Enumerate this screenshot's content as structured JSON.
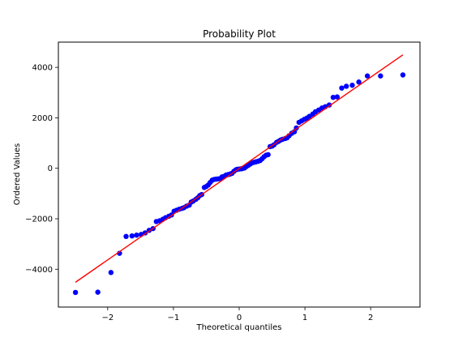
{
  "chart_data": {
    "type": "scatter",
    "title": "Probability Plot",
    "xlabel": "Theoretical quantiles",
    "ylabel": "Ordered Values",
    "xlim": [
      -2.75,
      2.75
    ],
    "ylim": [
      -5500,
      5000
    ],
    "xticks": [
      -2,
      -1,
      0,
      1,
      2
    ],
    "xtick_labels": [
      "−2",
      "−1",
      "0",
      "1",
      "2"
    ],
    "yticks": [
      -4000,
      -2000,
      0,
      2000,
      4000
    ],
    "ytick_labels": [
      "−4000",
      "−2000",
      "0",
      "2000",
      "4000"
    ],
    "grid": false,
    "marker_color": "#0000ff",
    "line_color": "#ff0000",
    "fit_line": {
      "slope": 1810,
      "intercept": -10
    },
    "points": [
      {
        "x": -2.49,
        "y": -4920
      },
      {
        "x": -2.15,
        "y": -4910
      },
      {
        "x": -1.95,
        "y": -4130
      },
      {
        "x": -1.82,
        "y": -3370
      },
      {
        "x": -1.72,
        "y": -2700
      },
      {
        "x": -1.63,
        "y": -2680
      },
      {
        "x": -1.56,
        "y": -2650
      },
      {
        "x": -1.49,
        "y": -2620
      },
      {
        "x": -1.43,
        "y": -2560
      },
      {
        "x": -1.37,
        "y": -2460
      },
      {
        "x": -1.31,
        "y": -2390
      },
      {
        "x": -1.26,
        "y": -2110
      },
      {
        "x": -1.21,
        "y": -2080
      },
      {
        "x": -1.16,
        "y": -2020
      },
      {
        "x": -1.12,
        "y": -1960
      },
      {
        "x": -1.07,
        "y": -1900
      },
      {
        "x": -1.03,
        "y": -1850
      },
      {
        "x": -0.99,
        "y": -1700
      },
      {
        "x": -0.95,
        "y": -1660
      },
      {
        "x": -0.91,
        "y": -1620
      },
      {
        "x": -0.87,
        "y": -1590
      },
      {
        "x": -0.84,
        "y": -1560
      },
      {
        "x": -0.8,
        "y": -1500
      },
      {
        "x": -0.76,
        "y": -1460
      },
      {
        "x": -0.73,
        "y": -1340
      },
      {
        "x": -0.7,
        "y": -1300
      },
      {
        "x": -0.66,
        "y": -1230
      },
      {
        "x": -0.63,
        "y": -1170
      },
      {
        "x": -0.6,
        "y": -1080
      },
      {
        "x": -0.57,
        "y": -1040
      },
      {
        "x": -0.53,
        "y": -760
      },
      {
        "x": -0.5,
        "y": -720
      },
      {
        "x": -0.47,
        "y": -660
      },
      {
        "x": -0.44,
        "y": -560
      },
      {
        "x": -0.41,
        "y": -470
      },
      {
        "x": -0.38,
        "y": -440
      },
      {
        "x": -0.35,
        "y": -430
      },
      {
        "x": -0.32,
        "y": -420
      },
      {
        "x": -0.29,
        "y": -410
      },
      {
        "x": -0.26,
        "y": -340
      },
      {
        "x": -0.23,
        "y": -320
      },
      {
        "x": -0.2,
        "y": -270
      },
      {
        "x": -0.17,
        "y": -250
      },
      {
        "x": -0.14,
        "y": -230
      },
      {
        "x": -0.11,
        "y": -200
      },
      {
        "x": -0.08,
        "y": -120
      },
      {
        "x": -0.05,
        "y": -60
      },
      {
        "x": -0.03,
        "y": -40
      },
      {
        "x": 0.0,
        "y": -30
      },
      {
        "x": 0.03,
        "y": -20
      },
      {
        "x": 0.05,
        "y": -10
      },
      {
        "x": 0.08,
        "y": 10
      },
      {
        "x": 0.11,
        "y": 70
      },
      {
        "x": 0.14,
        "y": 120
      },
      {
        "x": 0.17,
        "y": 170
      },
      {
        "x": 0.2,
        "y": 220
      },
      {
        "x": 0.23,
        "y": 240
      },
      {
        "x": 0.26,
        "y": 260
      },
      {
        "x": 0.29,
        "y": 280
      },
      {
        "x": 0.32,
        "y": 310
      },
      {
        "x": 0.35,
        "y": 380
      },
      {
        "x": 0.38,
        "y": 460
      },
      {
        "x": 0.41,
        "y": 520
      },
      {
        "x": 0.44,
        "y": 540
      },
      {
        "x": 0.47,
        "y": 860
      },
      {
        "x": 0.5,
        "y": 880
      },
      {
        "x": 0.53,
        "y": 930
      },
      {
        "x": 0.57,
        "y": 1030
      },
      {
        "x": 0.6,
        "y": 1070
      },
      {
        "x": 0.63,
        "y": 1120
      },
      {
        "x": 0.66,
        "y": 1150
      },
      {
        "x": 0.7,
        "y": 1180
      },
      {
        "x": 0.73,
        "y": 1210
      },
      {
        "x": 0.76,
        "y": 1290
      },
      {
        "x": 0.8,
        "y": 1390
      },
      {
        "x": 0.84,
        "y": 1450
      },
      {
        "x": 0.87,
        "y": 1600
      },
      {
        "x": 0.91,
        "y": 1820
      },
      {
        "x": 0.95,
        "y": 1880
      },
      {
        "x": 0.99,
        "y": 1940
      },
      {
        "x": 1.03,
        "y": 1990
      },
      {
        "x": 1.07,
        "y": 2060
      },
      {
        "x": 1.12,
        "y": 2150
      },
      {
        "x": 1.16,
        "y": 2240
      },
      {
        "x": 1.21,
        "y": 2310
      },
      {
        "x": 1.26,
        "y": 2390
      },
      {
        "x": 1.31,
        "y": 2440
      },
      {
        "x": 1.37,
        "y": 2510
      },
      {
        "x": 1.43,
        "y": 2810
      },
      {
        "x": 1.49,
        "y": 2830
      },
      {
        "x": 1.56,
        "y": 3180
      },
      {
        "x": 1.63,
        "y": 3250
      },
      {
        "x": 1.72,
        "y": 3290
      },
      {
        "x": 1.82,
        "y": 3420
      },
      {
        "x": 1.95,
        "y": 3660
      },
      {
        "x": 2.15,
        "y": 3660
      },
      {
        "x": 2.49,
        "y": 3700
      }
    ]
  }
}
